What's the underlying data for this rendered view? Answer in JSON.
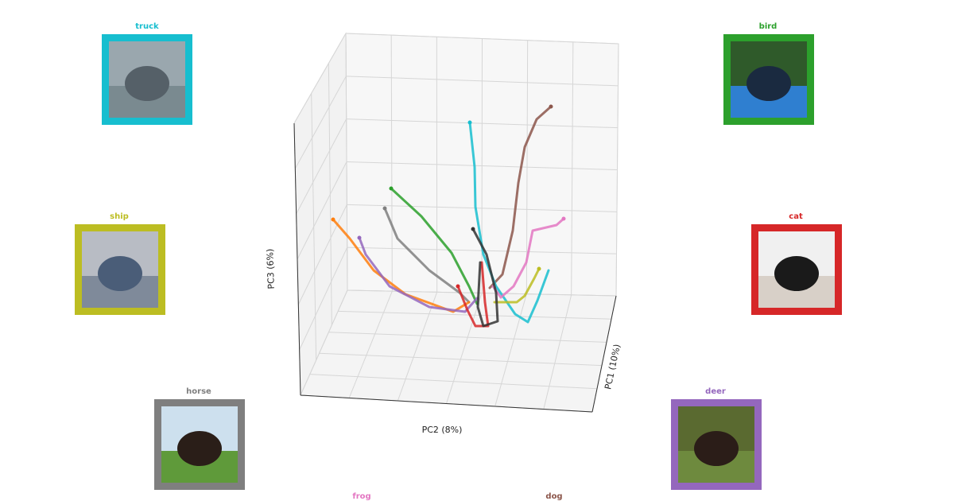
{
  "axes": {
    "x_label": "PC2 (8%)",
    "y_label": "PC1 (10%)",
    "z_label": "PC3 (6%)"
  },
  "panels": [
    {
      "label": "truck",
      "color": "#17becf"
    },
    {
      "label": "bird",
      "color": "#2ca02c"
    },
    {
      "label": "ship",
      "color": "#bcbd22"
    },
    {
      "label": "cat",
      "color": "#d62728"
    },
    {
      "label": "horse",
      "color": "#7f7f7f"
    },
    {
      "label": "deer",
      "color": "#9467bd"
    },
    {
      "label": "frog",
      "color": "#e377c2"
    },
    {
      "label": "dog",
      "color": "#8c564b"
    }
  ]
}
